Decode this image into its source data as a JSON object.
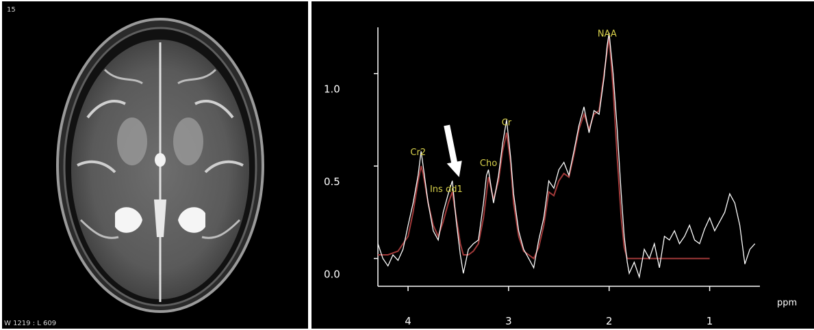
{
  "mri": {
    "slice_number": "15",
    "window_level": "W 1219 : L 609"
  },
  "colors": {
    "background": "#000000",
    "axis": "#ffffff",
    "measured_line": "#ffffff",
    "fit_line": "#a33a3a",
    "peak_label": "#d9d24c",
    "arrow": "#ffffff"
  },
  "chart_data": {
    "type": "line",
    "xlabel": "ppm",
    "ylabel": "",
    "x_reversed": true,
    "xlim": [
      4.3,
      0.5
    ],
    "ylim": [
      -0.15,
      1.25
    ],
    "x_ticks": [
      4,
      3,
      2,
      1
    ],
    "y_ticks": [
      0.0,
      0.5,
      1.0
    ],
    "y_tick_labels": [
      "0.0",
      "0.5",
      "1.0"
    ],
    "grid": false,
    "peak_labels": [
      {
        "text": "NAA",
        "x": 2.02,
        "y": 1.2
      },
      {
        "text": "Cr",
        "x": 3.02,
        "y": 0.72
      },
      {
        "text": "Cho",
        "x": 3.2,
        "y": 0.5
      },
      {
        "text": "Cr2",
        "x": 3.9,
        "y": 0.56
      },
      {
        "text": "Ins dd1",
        "x": 3.62,
        "y": 0.36
      }
    ],
    "annotation_arrow": {
      "x": 3.56,
      "y_from": 0.72,
      "y_to": 0.44
    },
    "series": [
      {
        "values_x": [
          4.3,
          4.25,
          4.2,
          4.15,
          4.1,
          4.05,
          4.0,
          3.95,
          3.9,
          3.87,
          3.85,
          3.8,
          3.75,
          3.7,
          3.65,
          3.6,
          3.56,
          3.52,
          3.48,
          3.45,
          3.4,
          3.35,
          3.3,
          3.25,
          3.22,
          3.2,
          3.15,
          3.1,
          3.06,
          3.02,
          2.98,
          2.95,
          2.9,
          2.85,
          2.8,
          2.75,
          2.7,
          2.65,
          2.6,
          2.55,
          2.5,
          2.45,
          2.4,
          2.35,
          2.3,
          2.25,
          2.2,
          2.15,
          2.1,
          2.05,
          2.02,
          2.0,
          1.96,
          1.92,
          1.88,
          1.85,
          1.82,
          1.8,
          1.75,
          1.7,
          1.65,
          1.6,
          1.55,
          1.5,
          1.45,
          1.4,
          1.35,
          1.3,
          1.25,
          1.2,
          1.15,
          1.1,
          1.05,
          1.0,
          0.95,
          0.9,
          0.85,
          0.8,
          0.75,
          0.7,
          0.65,
          0.6,
          0.55
        ],
        "values": [
          0.08,
          0.0,
          -0.04,
          0.02,
          -0.01,
          0.05,
          0.18,
          0.3,
          0.45,
          0.58,
          0.5,
          0.3,
          0.15,
          0.1,
          0.25,
          0.35,
          0.42,
          0.2,
          0.02,
          -0.08,
          0.05,
          0.08,
          0.1,
          0.3,
          0.45,
          0.48,
          0.3,
          0.45,
          0.62,
          0.75,
          0.55,
          0.35,
          0.15,
          0.05,
          0.0,
          -0.05,
          0.1,
          0.22,
          0.42,
          0.38,
          0.48,
          0.52,
          0.45,
          0.58,
          0.72,
          0.82,
          0.68,
          0.8,
          0.78,
          0.98,
          1.15,
          1.22,
          1.0,
          0.7,
          0.35,
          0.12,
          -0.02,
          -0.08,
          -0.02,
          -0.1,
          0.05,
          0.0,
          0.08,
          -0.05,
          0.12,
          0.1,
          0.15,
          0.08,
          0.12,
          0.18,
          0.1,
          0.08,
          0.16,
          0.22,
          0.15,
          0.2,
          0.25,
          0.35,
          0.3,
          0.18,
          -0.03,
          0.05,
          0.08
        ]
      },
      {
        "values_x": [
          4.3,
          4.2,
          4.1,
          4.0,
          3.95,
          3.9,
          3.87,
          3.85,
          3.8,
          3.75,
          3.7,
          3.65,
          3.6,
          3.56,
          3.52,
          3.48,
          3.45,
          3.4,
          3.35,
          3.3,
          3.25,
          3.2,
          3.15,
          3.1,
          3.06,
          3.02,
          2.98,
          2.95,
          2.9,
          2.85,
          2.8,
          2.75,
          2.7,
          2.65,
          2.6,
          2.55,
          2.5,
          2.45,
          2.4,
          2.35,
          2.3,
          2.25,
          2.2,
          2.15,
          2.1,
          2.05,
          2.02,
          2.0,
          1.96,
          1.92,
          1.88,
          1.85,
          1.82,
          1.8,
          1.75,
          1.7,
          1.6,
          1.5,
          1.4,
          1.3,
          1.2,
          1.1,
          1.0
        ],
        "values": [
          0.02,
          0.02,
          0.04,
          0.12,
          0.25,
          0.42,
          0.5,
          0.46,
          0.3,
          0.18,
          0.12,
          0.2,
          0.3,
          0.36,
          0.22,
          0.08,
          0.02,
          0.02,
          0.04,
          0.08,
          0.22,
          0.44,
          0.32,
          0.42,
          0.58,
          0.68,
          0.52,
          0.3,
          0.12,
          0.04,
          0.02,
          0.0,
          0.06,
          0.18,
          0.36,
          0.34,
          0.42,
          0.46,
          0.44,
          0.56,
          0.7,
          0.78,
          0.7,
          0.78,
          0.8,
          1.0,
          1.12,
          1.2,
          0.92,
          0.55,
          0.22,
          0.06,
          0.0,
          0.0,
          0.0,
          0.0,
          0.0,
          0.0,
          0.0,
          0.0,
          0.0,
          0.0,
          0.0
        ]
      }
    ]
  }
}
